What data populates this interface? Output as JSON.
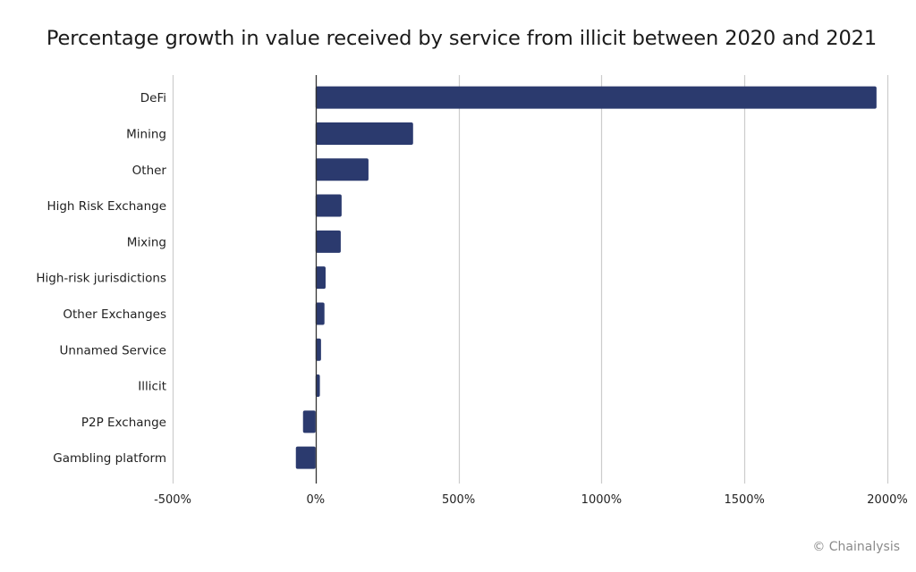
{
  "chart_data": {
    "type": "bar",
    "orientation": "horizontal",
    "title": "Percentage growth in value received by service from illicit between 2020 and 2021",
    "xlabel": "",
    "ylabel": "",
    "categories": [
      "DeFi",
      "Mining",
      "Other",
      "High Risk Exchange",
      "Mixing",
      "High-risk jurisdictions",
      "Other Exchanges",
      "Unnamed Service",
      "Illicit",
      "P2P Exchange",
      "Gambling platform"
    ],
    "values": [
      1962,
      341,
      185,
      91,
      88,
      35,
      31,
      19,
      15,
      -44,
      -69
    ],
    "value_unit": "%",
    "xlim": [
      -500,
      2000
    ],
    "xticks": [
      -500,
      0,
      500,
      1000,
      1500,
      2000
    ],
    "xtick_labels": [
      "-500%",
      "0%",
      "500%",
      "1000%",
      "1500%",
      "2000%"
    ],
    "grid": "vertical",
    "legend": "none",
    "bar_color": "#2b3a6e",
    "grid_color": "#cccccc",
    "zero_line_color": "#333333"
  },
  "footer": {
    "copyright": "© Chainalysis"
  }
}
